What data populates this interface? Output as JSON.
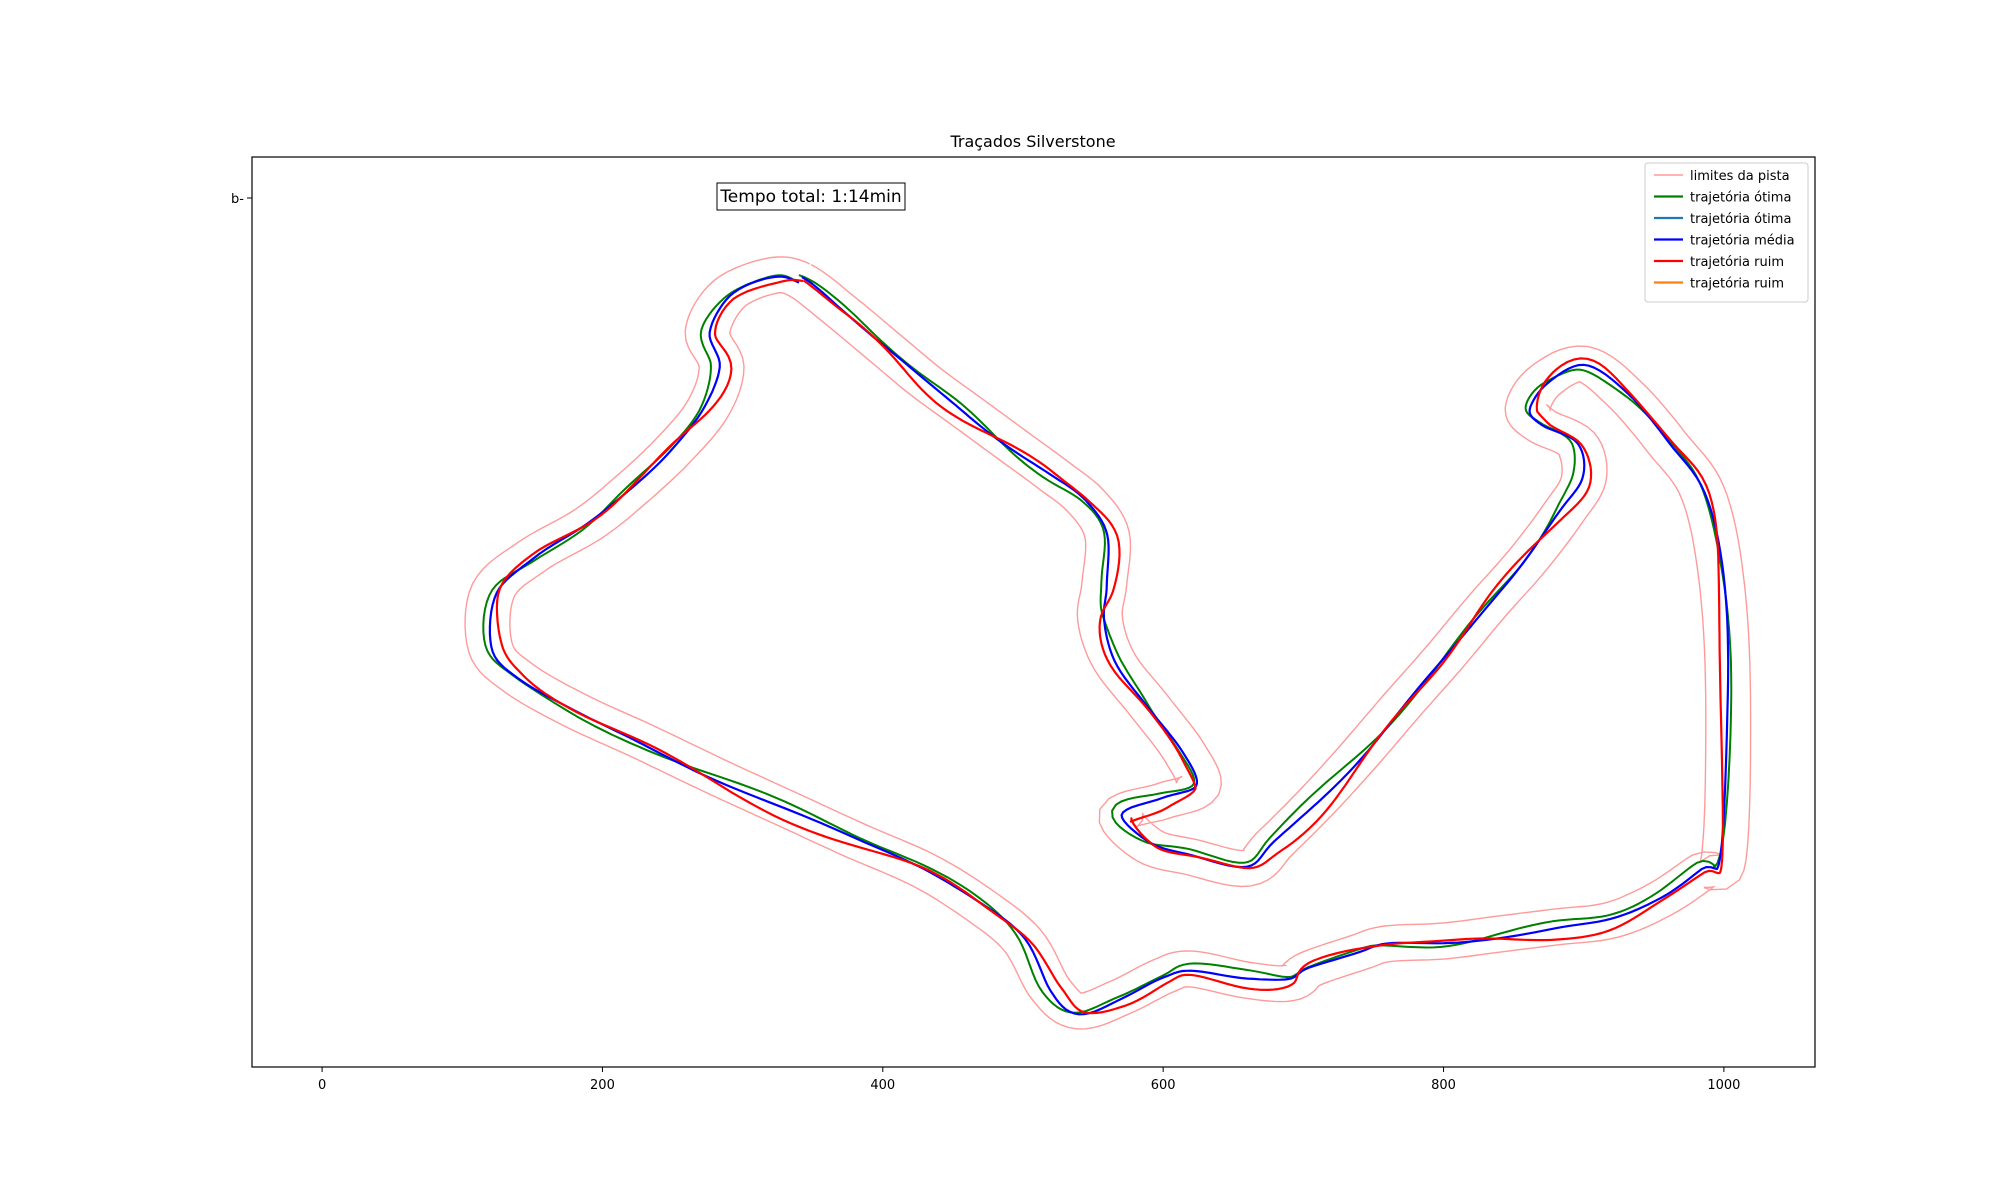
{
  "chart_data": {
    "type": "line",
    "title": "Traçados Silverstone",
    "xlabel": "",
    "ylabel": "",
    "xlim": [
      -50,
      1065
    ],
    "ylim": [
      0,
      650
    ],
    "x_ticks": [
      0,
      200,
      400,
      600,
      800,
      1000
    ],
    "y_tick_labels": [
      "b-"
    ],
    "grid": false,
    "legend_position": "top-right",
    "annotation": "Tempo total: 1:14min",
    "colors": {
      "track_limits": "#ff9a9a",
      "optimal": "#008000",
      "optimal_alt": "#1f77b4",
      "average": "#0000ff",
      "poor": "#ff0000",
      "poor_alt": "#ff7f0e"
    },
    "legend": [
      {
        "label": "limites da pista",
        "color": "#ff9a9a"
      },
      {
        "label": "trajetória ótima",
        "color": "#008000"
      },
      {
        "label": "trajetória ótima",
        "color": "#1f77b4"
      },
      {
        "label": "trajetória média",
        "color": "#0000ff"
      },
      {
        "label": "trajetória ruim",
        "color": "#ff0000"
      },
      {
        "label": "trajetória ruim",
        "color": "#ff7f0e"
      }
    ],
    "centerline": [
      [
        341,
        562
      ],
      [
        370,
        540
      ],
      [
        400,
        515
      ],
      [
        430,
        490
      ],
      [
        460,
        468
      ],
      [
        490,
        446
      ],
      [
        520,
        424
      ],
      [
        545,
        404
      ],
      [
        560,
        380
      ],
      [
        558,
        345
      ],
      [
        555,
        320
      ],
      [
        565,
        290
      ],
      [
        590,
        258
      ],
      [
        615,
        225
      ],
      [
        625,
        200
      ],
      [
        600,
        190
      ],
      [
        570,
        180
      ],
      [
        590,
        158
      ],
      [
        620,
        150
      ],
      [
        660,
        142
      ],
      [
        680,
        160
      ],
      [
        710,
        190
      ],
      [
        740,
        223
      ],
      [
        770,
        258
      ],
      [
        800,
        292
      ],
      [
        830,
        328
      ],
      [
        860,
        362
      ],
      [
        885,
        395
      ],
      [
        900,
        420
      ],
      [
        895,
        445
      ],
      [
        870,
        458
      ],
      [
        860,
        470
      ],
      [
        872,
        490
      ],
      [
        900,
        502
      ],
      [
        930,
        480
      ],
      [
        960,
        445
      ],
      [
        985,
        410
      ],
      [
        998,
        350
      ],
      [
        1003,
        265
      ],
      [
        1000,
        150
      ],
      [
        985,
        140
      ],
      [
        955,
        120
      ],
      [
        920,
        105
      ],
      [
        880,
        100
      ],
      [
        840,
        95
      ],
      [
        800,
        90
      ],
      [
        760,
        88
      ],
      [
        740,
        82
      ],
      [
        705,
        70
      ],
      [
        690,
        60
      ],
      [
        660,
        62
      ],
      [
        620,
        70
      ],
      [
        600,
        65
      ],
      [
        570,
        50
      ],
      [
        540,
        40
      ],
      [
        520,
        55
      ],
      [
        500,
        90
      ],
      [
        470,
        115
      ],
      [
        430,
        140
      ],
      [
        380,
        162
      ],
      [
        330,
        185
      ],
      [
        280,
        208
      ],
      [
        230,
        232
      ],
      [
        180,
        255
      ],
      [
        140,
        278
      ],
      [
        120,
        300
      ],
      [
        122,
        340
      ],
      [
        150,
        365
      ],
      [
        190,
        388
      ],
      [
        220,
        412
      ],
      [
        250,
        440
      ],
      [
        275,
        470
      ],
      [
        285,
        500
      ],
      [
        275,
        525
      ],
      [
        290,
        552
      ],
      [
        320,
        565
      ],
      [
        341,
        562
      ]
    ],
    "series": [
      {
        "name": "trajetória ótima",
        "color": "#008000",
        "offset": [
          -5,
          4
        ],
        "wobble": 4.0,
        "phase": 0.3,
        "width": 2
      },
      {
        "name": "trajetória média",
        "color": "#0000ff",
        "offset": [
          0,
          0
        ],
        "wobble": 2.0,
        "phase": 1.1,
        "width": 2.2
      },
      {
        "name": "trajetória ruim",
        "color": "#ff0000",
        "offset": [
          4,
          -4
        ],
        "wobble": 5.0,
        "phase": 2.2,
        "width": 2.2
      }
    ],
    "track_half_width": 16
  }
}
